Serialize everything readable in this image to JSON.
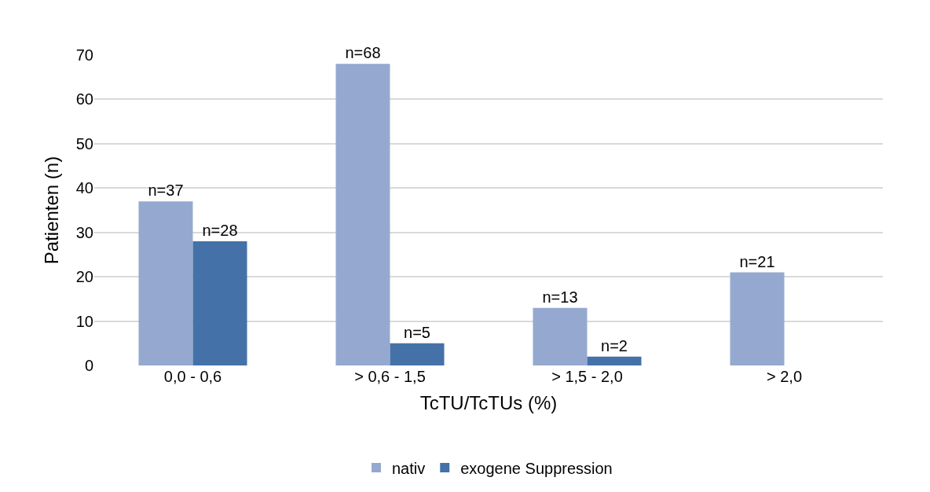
{
  "chart_data": {
    "type": "bar",
    "xlabel": "TcTU/TcTUs (%)",
    "ylabel": "Patienten (n)",
    "categories": [
      "0,0 - 0,6",
      "> 0,6 - 1,5",
      "> 1,5 - 2,0",
      "> 2,0"
    ],
    "series": [
      {
        "name": "nativ",
        "color": "#95a9d0",
        "values": [
          37,
          68,
          13,
          21
        ],
        "value_labels": [
          "n=37",
          "n=68",
          "n=13",
          "n=21"
        ]
      },
      {
        "name": "exogene Suppression",
        "color": "#4472a8",
        "values": [
          28,
          5,
          2,
          null
        ],
        "value_labels": [
          "n=28",
          "n=5",
          "n=2",
          null
        ]
      }
    ],
    "ylim": [
      0,
      70
    ],
    "yticks": [
      0,
      10,
      20,
      30,
      40,
      50,
      60,
      70
    ],
    "grid": "y",
    "legend": "bottom"
  }
}
